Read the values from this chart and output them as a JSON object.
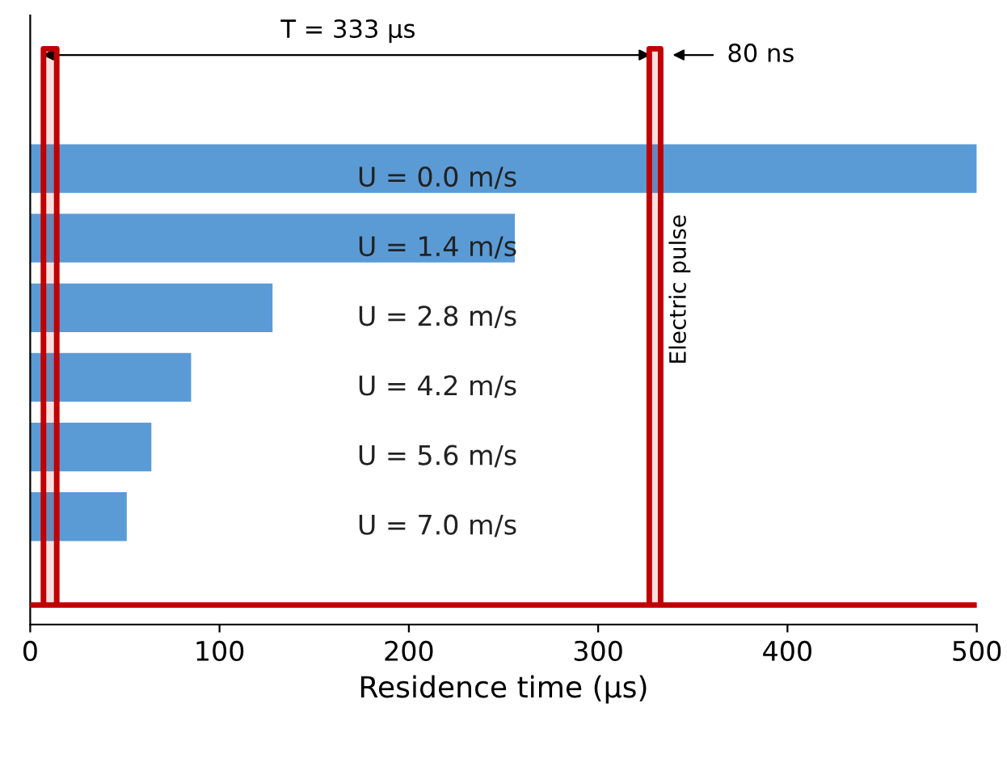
{
  "chart_data": {
    "type": "bar",
    "orientation": "horizontal",
    "xlabel": "Residence time (µs)",
    "categories": [
      "U = 0.0 m/s",
      "U = 1.4 m/s",
      "U = 2.8 m/s",
      "U = 4.2 m/s",
      "U = 5.6 m/s",
      "U = 7.0 m/s"
    ],
    "series": [
      {
        "color": "#5b9bd5",
        "values": [
          500,
          256,
          128,
          85,
          64,
          51
        ]
      }
    ],
    "bands": [
      {
        "axis": "x",
        "from": 7,
        "to": 14,
        "color": "#c00000"
      },
      {
        "axis": "x",
        "from": 327,
        "to": 333,
        "color": "#c00000"
      }
    ],
    "xlim": [
      0,
      500
    ],
    "xticks": [
      0,
      100,
      200,
      300,
      400,
      500
    ],
    "tick_labels": "x",
    "annotations": [
      "T = 333 µs",
      "80 ns",
      "Electric pulse"
    ]
  }
}
